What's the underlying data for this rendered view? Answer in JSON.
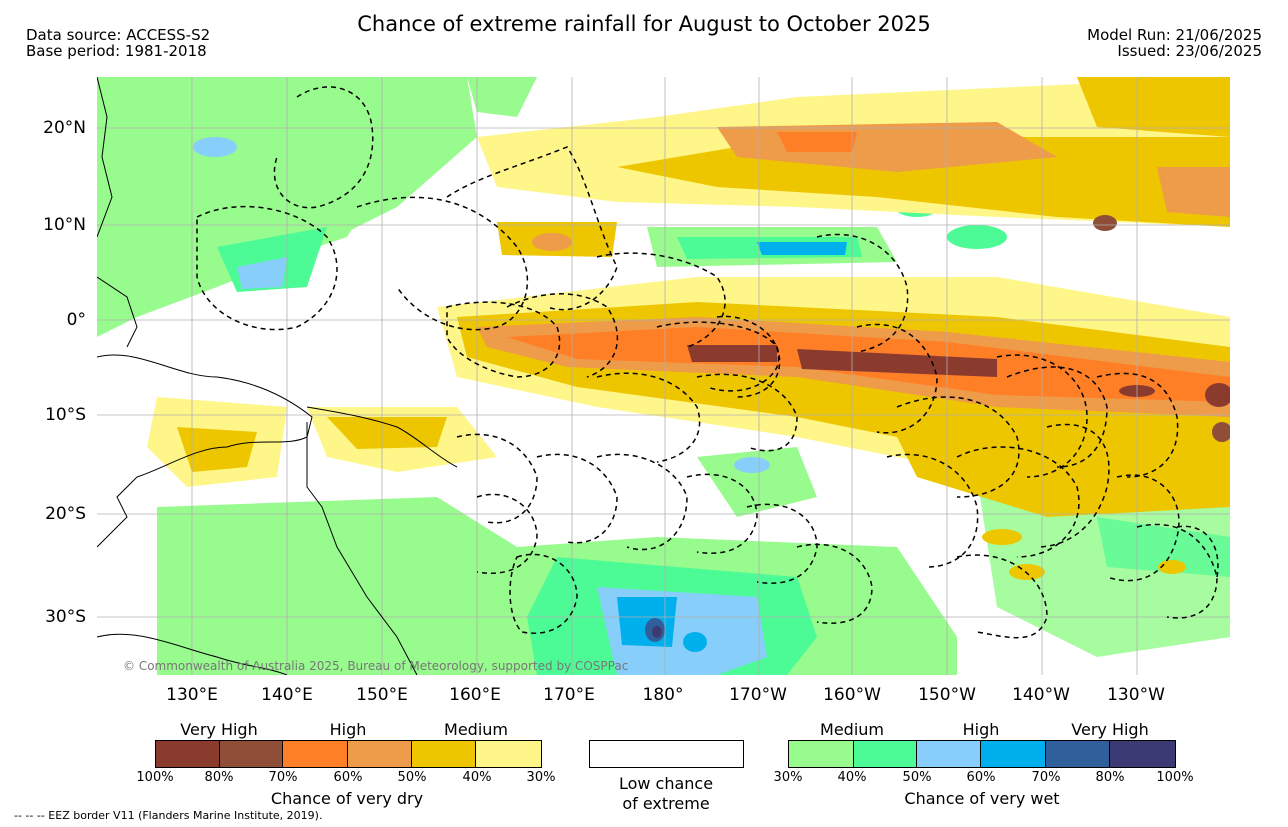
{
  "title": "Chance of extreme rainfall for August to October 2025",
  "meta_left": [
    "Data source: ACCESS-S2",
    "Base period: 1981-2018"
  ],
  "meta_right": [
    "Model Run: 21/06/2025",
    "Issued: 23/06/2025"
  ],
  "map": {
    "lon_ticks": [
      "130°E",
      "140°E",
      "150°E",
      "160°E",
      "170°E",
      "180°",
      "170°W",
      "160°W",
      "150°W",
      "140°W",
      "130°W"
    ],
    "lat_ticks": [
      "20°N",
      "10°N",
      "0°",
      "10°S",
      "20°S",
      "30°S"
    ],
    "copyright": "© Commonwealth of Australia 2025, Bureau of Meteorology, supported by COSPPac"
  },
  "legend": {
    "dry": {
      "categories": [
        "Very High",
        "High",
        "Medium"
      ],
      "ticks": [
        "100%",
        "80%",
        "70%",
        "60%",
        "50%",
        "40%",
        "30%"
      ],
      "colors": [
        "#8b3a2e",
        "#8f4e38",
        "#ff7f27",
        "#ee9b4a",
        "#eec600",
        "#fff68a"
      ],
      "label": "Chance of very dry"
    },
    "low": {
      "label_line1": "Low chance",
      "label_line2": "of extreme"
    },
    "wet": {
      "categories": [
        "Medium",
        "High",
        "Very High"
      ],
      "ticks": [
        "30%",
        "40%",
        "50%",
        "60%",
        "70%",
        "80%",
        "100%"
      ],
      "colors": [
        "#98fb8e",
        "#4dfb96",
        "#87cefa",
        "#00b0ec",
        "#30609b",
        "#3c3a74"
      ],
      "label": "Chance of very wet"
    }
  },
  "footnote": "-- -- -- EEZ border V11 (Flanders Marine Institute, 2019)."
}
